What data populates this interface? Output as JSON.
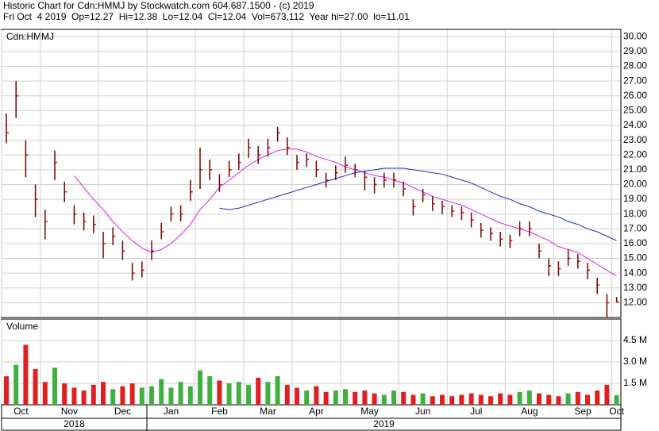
{
  "header": {
    "title": "Historic Chart for Cdn:HMMJ by Stockwatch.com 604.687.1500 - (c) 2019",
    "quote": "Fri Oct  4 2019  Op=12.27  Hi=12.38  Lo=12.04  Cl=12.04  Vol=673,112  Year hi=27.00  lo=11.01"
  },
  "chart_data": [
    {
      "type": "hlc",
      "label": "Cdn:HMMJ",
      "color": "#700000",
      "tick_color": "#d00000",
      "categories": [
        "Oct",
        null,
        null,
        null,
        "Nov",
        null,
        null,
        null,
        null,
        null,
        "Dec",
        null,
        null,
        null,
        null,
        "Jan",
        null,
        null,
        null,
        null,
        "Feb",
        null,
        null,
        null,
        null,
        "Mar",
        null,
        null,
        null,
        null,
        "Apr",
        null,
        null,
        null,
        null,
        "May",
        null,
        null,
        null,
        null,
        null,
        "Jun",
        null,
        null,
        null,
        null,
        "Jul",
        null,
        null,
        null,
        null,
        null,
        "Aug",
        null,
        null,
        null,
        null,
        "Sep",
        null,
        null,
        null,
        null,
        null,
        "Oct"
      ],
      "years": [
        {
          "label": "2018",
          "from": 0
        },
        {
          "label": "2019",
          "from": 15
        }
      ],
      "high": [
        24.8,
        27.0,
        23.0,
        20.0,
        18.3,
        22.3,
        20.2,
        18.6,
        18.1,
        17.9,
        16.8,
        17.1,
        16.2,
        14.7,
        14.8,
        16.2,
        17.4,
        18.5,
        18.6,
        20.3,
        22.5,
        21.7,
        20.7,
        21.6,
        22.1,
        23.1,
        22.6,
        23.1,
        23.9,
        23.2,
        22.0,
        22.1,
        21.6,
        20.8,
        21.3,
        21.9,
        21.4,
        20.9,
        20.5,
        20.8,
        20.8,
        20.2,
        19.0,
        19.7,
        19.2,
        18.9,
        18.6,
        18.5,
        18.1,
        17.4,
        17.1,
        16.8,
        16.6,
        17.5,
        17.5,
        16.0,
        15.0,
        14.8,
        15.6,
        15.3,
        14.7,
        13.7,
        12.6,
        12.38
      ],
      "low": [
        22.8,
        24.5,
        20.5,
        17.8,
        16.3,
        20.3,
        18.8,
        17.3,
        16.9,
        16.7,
        15.0,
        15.9,
        14.9,
        13.5,
        13.7,
        14.9,
        16.3,
        17.5,
        17.5,
        18.9,
        19.7,
        20.3,
        19.5,
        20.5,
        21.0,
        21.8,
        21.4,
        21.9,
        22.9,
        22.0,
        21.0,
        21.2,
        20.5,
        19.8,
        20.3,
        20.8,
        20.5,
        19.6,
        19.4,
        19.8,
        19.8,
        19.2,
        17.9,
        18.8,
        18.2,
        18.0,
        17.8,
        17.6,
        17.1,
        16.4,
        16.2,
        15.8,
        15.7,
        16.5,
        16.5,
        15.0,
        13.8,
        13.8,
        14.5,
        14.3,
        13.6,
        12.6,
        11.01,
        12.04
      ],
      "close": [
        23.5,
        26.0,
        22.0,
        19.0,
        17.5,
        21.5,
        19.5,
        18.0,
        17.5,
        17.3,
        16.0,
        16.5,
        15.5,
        14.0,
        14.2,
        15.5,
        16.8,
        18.0,
        18.0,
        19.5,
        21.0,
        21.0,
        20.0,
        21.0,
        21.5,
        22.5,
        22.0,
        22.5,
        23.5,
        22.5,
        21.5,
        21.7,
        21.0,
        20.3,
        20.8,
        21.3,
        21.0,
        20.5,
        20.0,
        20.3,
        20.3,
        19.7,
        18.5,
        19.3,
        18.7,
        18.5,
        18.2,
        18.1,
        17.6,
        16.9,
        16.7,
        16.3,
        16.2,
        17.0,
        17.0,
        15.5,
        14.5,
        14.3,
        15.0,
        14.8,
        14.2,
        13.2,
        12.0,
        12.04
      ],
      "moving_averages": [
        {
          "color": "#e020e0",
          "values": [
            null,
            null,
            null,
            null,
            null,
            null,
            null,
            20.6,
            19.8,
            19.0,
            18.3,
            17.5,
            16.8,
            16.2,
            15.7,
            15.4,
            15.6,
            16.0,
            16.6,
            17.3,
            18.3,
            19.0,
            19.8,
            20.3,
            20.8,
            21.3,
            21.7,
            22.0,
            22.3,
            22.4,
            22.4,
            22.2,
            21.9,
            21.7,
            21.5,
            21.2,
            21.0,
            20.8,
            20.6,
            20.5,
            20.3,
            20.1,
            19.8,
            19.5,
            19.2,
            19.0,
            18.8,
            18.6,
            18.3,
            18.0,
            17.7,
            17.4,
            17.2,
            17.0,
            16.8,
            16.5,
            16.2,
            15.8,
            15.6,
            15.4,
            15.0,
            14.6,
            14.2,
            13.8
          ]
        },
        {
          "color": "#2030b0",
          "values": [
            null,
            null,
            null,
            null,
            null,
            null,
            null,
            null,
            null,
            null,
            null,
            null,
            null,
            null,
            null,
            null,
            null,
            null,
            null,
            null,
            null,
            null,
            18.4,
            18.3,
            18.4,
            18.6,
            18.8,
            19.0,
            19.2,
            19.4,
            19.6,
            19.8,
            20.0,
            20.2,
            20.4,
            20.6,
            20.8,
            20.9,
            21.0,
            21.1,
            21.1,
            21.1,
            21.0,
            20.9,
            20.8,
            20.7,
            20.5,
            20.3,
            20.1,
            19.8,
            19.5,
            19.2,
            19.0,
            18.7,
            18.5,
            18.2,
            18.0,
            17.8,
            17.5,
            17.3,
            17.0,
            16.8,
            16.5,
            16.2
          ]
        }
      ],
      "ylim": [
        11,
        30.5
      ],
      "yticks": [
        {
          "value": 12,
          "label": "12.00"
        },
        {
          "value": 13,
          "label": "13.00"
        },
        {
          "value": 14,
          "label": "14.00"
        },
        {
          "value": 15,
          "label": "15.00"
        },
        {
          "value": 16,
          "label": "16.00"
        },
        {
          "value": 17,
          "label": "17.00"
        },
        {
          "value": 18,
          "label": "18.00"
        },
        {
          "value": 19,
          "label": "19.00"
        },
        {
          "value": 20,
          "label": "20.00"
        },
        {
          "value": 21,
          "label": "21.00"
        },
        {
          "value": 22,
          "label": "22.00"
        },
        {
          "value": 23,
          "label": "23.00"
        },
        {
          "value": 24,
          "label": "24.00"
        },
        {
          "value": 25,
          "label": "25.00"
        },
        {
          "value": 26,
          "label": "26.00"
        },
        {
          "value": 27,
          "label": "27.00"
        },
        {
          "value": 28,
          "label": "28.00"
        },
        {
          "value": 29,
          "label": "29.00"
        },
        {
          "value": 30,
          "label": "30.00"
        }
      ],
      "grid": true
    },
    {
      "type": "bar",
      "label": "Volume",
      "up_color": "#40b040",
      "down_color": "#e02020",
      "values": [
        2.0,
        2.8,
        4.2,
        2.5,
        1.6,
        2.6,
        1.5,
        1.2,
        1.0,
        1.4,
        1.6,
        1.1,
        1.3,
        1.5,
        1.2,
        1.3,
        1.8,
        1.2,
        1.6,
        1.3,
        2.4,
        2.0,
        1.7,
        1.5,
        1.6,
        1.4,
        1.9,
        1.6,
        2.0,
        1.4,
        1.2,
        1.0,
        1.3,
        0.9,
        1.0,
        1.1,
        0.9,
        1.0,
        0.8,
        0.7,
        1.0,
        0.9,
        0.7,
        0.8,
        0.6,
        0.7,
        0.6,
        0.7,
        0.8,
        0.7,
        0.6,
        0.8,
        0.7,
        0.9,
        1.0,
        0.8,
        0.7,
        0.6,
        0.8,
        0.9,
        0.7,
        1.0,
        1.4,
        0.67
      ],
      "ylim": [
        0,
        6
      ],
      "yticks": [
        {
          "value": 1.5,
          "label": "1.5 M"
        },
        {
          "value": 3,
          "label": "3.0 M"
        },
        {
          "value": 4.5,
          "label": "4.5 M"
        }
      ],
      "grid": true
    }
  ]
}
